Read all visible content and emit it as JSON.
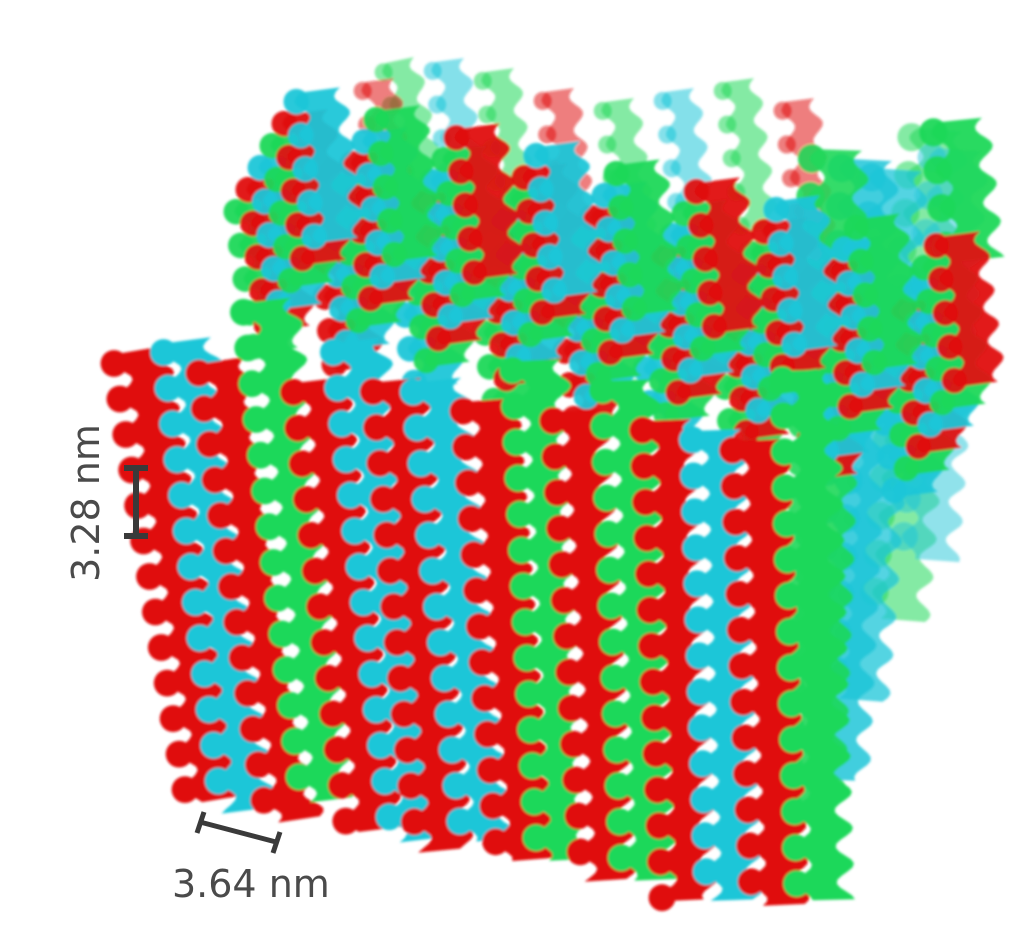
{
  "scale_bars": {
    "vertical": {
      "label": "3.28 nm"
    },
    "horizontal": {
      "label": "3.64 nm"
    }
  },
  "colors": {
    "red": "#e01010",
    "cyan": "#1ec6d8",
    "green": "#1fd85a",
    "background": "#ffffff",
    "scale_bar": "#3a3a3a"
  }
}
